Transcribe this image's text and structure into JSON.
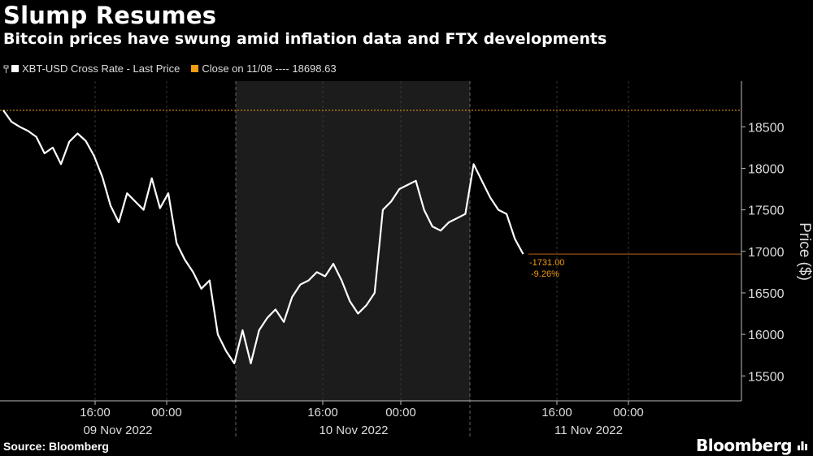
{
  "header": {
    "title": "Slump Resumes",
    "subtitle": "Bitcoin prices have swung amid inflation data and FTX developments"
  },
  "legend": {
    "series1_label": "XBT-USD Cross Rate - Last Price",
    "series2_label": "Close on 11/08 ---- 18698.63"
  },
  "footer": {
    "source": "Source: Bloomberg",
    "brand": "Bloomberg"
  },
  "colors": {
    "price_line": "#ffffff",
    "close_line": "#f39c12",
    "shade": "#1c1c1c",
    "axis_text": "#dddddd"
  },
  "chart_data": {
    "type": "line",
    "ylabel": "Price ($)",
    "ylim": [
      15200,
      19050
    ],
    "yticks": [
      15500,
      16000,
      16500,
      17000,
      17500,
      18000,
      18500
    ],
    "x_time_ticks": [
      "16:00",
      "00:00",
      "16:00",
      "00:00",
      "16:00",
      "00:00"
    ],
    "x_date_labels": [
      "09 Nov 2022",
      "10 Nov 2022",
      "11 Nov 2022"
    ],
    "shaded_day": "10 Nov 2022",
    "reference_line": {
      "label": "Close on 11/08",
      "value": 18698.63
    },
    "last_value_annotation": {
      "change": "-1731.00",
      "pct": "-9.26%",
      "value": 16967.63
    },
    "series": [
      {
        "name": "XBT-USD Cross Rate - Last Price",
        "x_hours_from_start": [
          0,
          1,
          2,
          3,
          4,
          5,
          6,
          7,
          8,
          9,
          10,
          11,
          12,
          13,
          14,
          15,
          16,
          17,
          18,
          19,
          20,
          21,
          22,
          23,
          24,
          25,
          26,
          27,
          28,
          29,
          30,
          31,
          32,
          33,
          34,
          35,
          36,
          37,
          38,
          39,
          40,
          41,
          42,
          43,
          44,
          45,
          46,
          47,
          48,
          49,
          50,
          51,
          52,
          53,
          54,
          55,
          56,
          57,
          58,
          59,
          60,
          61,
          62,
          63
        ],
        "values": [
          18700,
          18560,
          18500,
          18450,
          18380,
          18180,
          18250,
          18050,
          18320,
          18420,
          18330,
          18150,
          17900,
          17550,
          17350,
          17700,
          17600,
          17500,
          17880,
          17520,
          17700,
          17100,
          16900,
          16750,
          16550,
          16650,
          16000,
          15800,
          15650,
          16050,
          15650,
          16050,
          16200,
          16300,
          16150,
          16450,
          16600,
          16650,
          16750,
          16700,
          16850,
          16650,
          16400,
          16250,
          16350,
          16500,
          17500,
          17600,
          17750,
          17800,
          17850,
          17500,
          17300,
          17250,
          17350,
          17400,
          17450,
          18050,
          17850,
          17650,
          17500,
          17450,
          17150,
          16967.63
        ]
      }
    ]
  }
}
